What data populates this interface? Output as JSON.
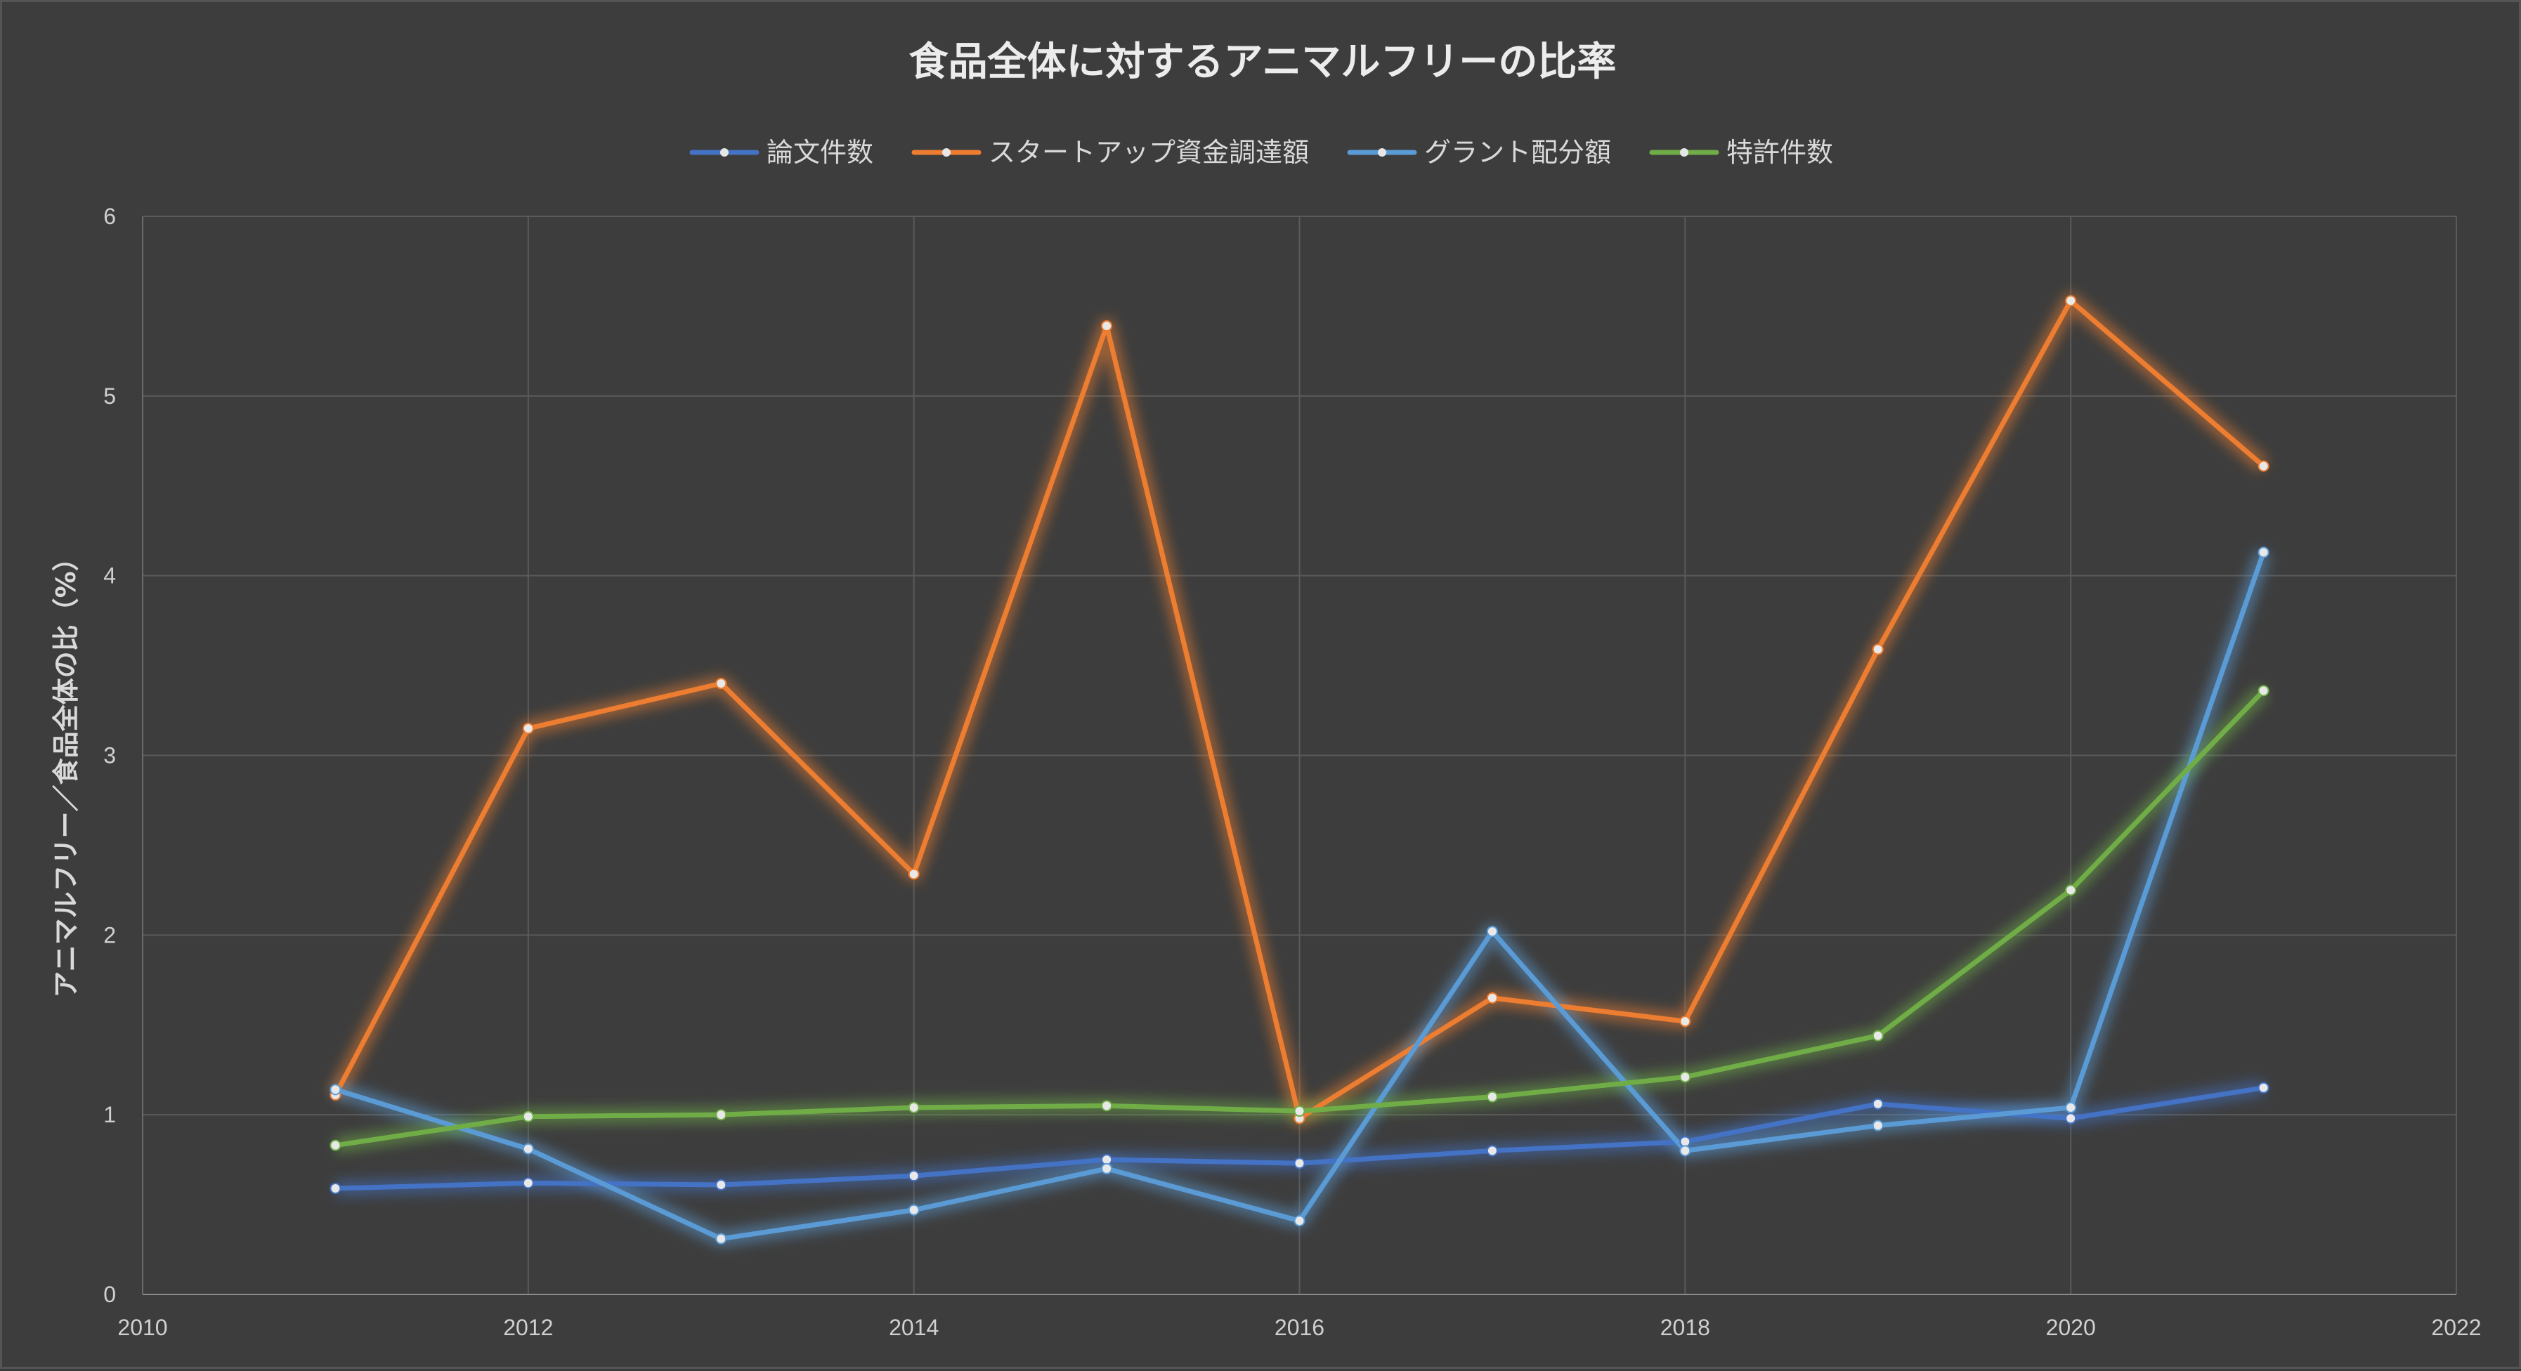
{
  "chart_data": {
    "type": "line",
    "title": "食品全体に対するアニマルフリーの比率",
    "xlabel": "",
    "ylabel": "アニマルフリー／食品全体の比（%）",
    "xlim": [
      2010,
      2022
    ],
    "ylim": [
      0,
      6
    ],
    "x_ticks": [
      "2010",
      "2012",
      "2014",
      "2016",
      "2018",
      "2020",
      "2022"
    ],
    "y_ticks": [
      "0",
      "1",
      "2",
      "3",
      "4",
      "5",
      "6"
    ],
    "grid": true,
    "legend_position": "top-center",
    "x": [
      2011,
      2012,
      2013,
      2014,
      2015,
      2016,
      2017,
      2018,
      2019,
      2020,
      2021
    ],
    "series": [
      {
        "name": "論文件数",
        "color": "#4472c4",
        "values": [
          0.59,
          0.62,
          0.61,
          0.66,
          0.75,
          0.73,
          0.8,
          0.85,
          1.06,
          0.98,
          1.15
        ]
      },
      {
        "name": "スタートアップ資金調達額",
        "color": "#ed7d31",
        "values": [
          1.11,
          3.15,
          3.4,
          2.34,
          5.39,
          0.98,
          1.65,
          1.52,
          3.59,
          5.53,
          4.61
        ]
      },
      {
        "name": "グラント配分額",
        "color": "#5b9bd5",
        "values": [
          1.14,
          0.81,
          0.31,
          0.47,
          0.7,
          0.41,
          2.02,
          0.8,
          0.94,
          1.04,
          4.13
        ]
      },
      {
        "name": "特許件数",
        "color": "#70ad47",
        "values": [
          0.83,
          0.99,
          1.0,
          1.04,
          1.05,
          1.02,
          1.1,
          1.21,
          1.44,
          2.25,
          3.36
        ]
      }
    ]
  }
}
